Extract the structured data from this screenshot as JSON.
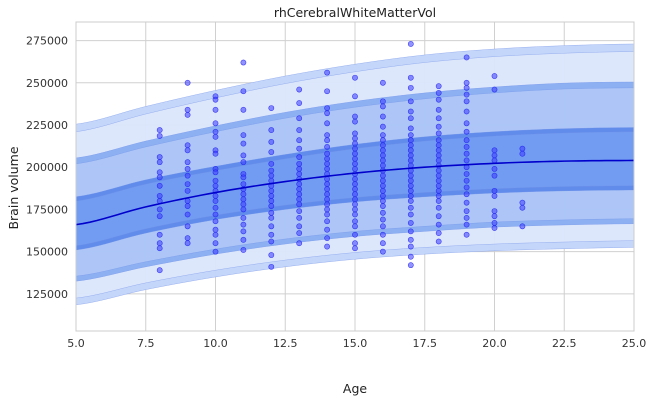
{
  "chart_data": {
    "type": "scatter",
    "title": "rhCerebralWhiteMatterVol",
    "xlabel": "Age",
    "ylabel": "Brain volume",
    "xlim": [
      5.0,
      25.0
    ],
    "ylim": [
      103000,
      286000
    ],
    "xticks": [
      5.0,
      7.5,
      10.0,
      12.5,
      15.0,
      17.5,
      20.0,
      22.5,
      25.0
    ],
    "xtick_labels": [
      "5.0",
      "7.5",
      "10.0",
      "12.5",
      "15.0",
      "17.5",
      "20.0",
      "22.5",
      "25.0"
    ],
    "yticks": [
      125000,
      150000,
      175000,
      200000,
      225000,
      250000,
      275000
    ],
    "ytick_labels": [
      "125000",
      "150000",
      "175000",
      "200000",
      "225000",
      "250000",
      "275000"
    ],
    "grid": true,
    "colors": {
      "points": "#3b3bff",
      "median": "#0000cc",
      "band_inner": "#6f9af0",
      "band_middle": "#aac4f7",
      "band_outer": "#dbe6fc",
      "grid": "#d0d0d0",
      "axes_edge": "#cccccc"
    },
    "median_curve": {
      "x": [
        5.0,
        7.5,
        10.0,
        12.5,
        15.0,
        17.5,
        20.0,
        22.5,
        25.0
      ],
      "y": [
        166000,
        176500,
        185000,
        191500,
        196500,
        200000,
        202300,
        203600,
        204000
      ]
    },
    "centile_bands": [
      {
        "x": [
          5.0,
          7.5,
          10.0,
          12.5,
          15.0,
          17.5,
          20.0,
          22.5,
          25.0
        ],
        "lower_min": [
          151000,
          161000,
          169000,
          175000,
          179500,
          182500,
          184700,
          186000,
          186500
        ],
        "lower_max": [
          153500,
          163500,
          171500,
          177500,
          182000,
          185000,
          187200,
          188500,
          189000
        ],
        "upper_min": [
          180000,
          190000,
          198000,
          205000,
          211000,
          215500,
          218500,
          220300,
          221000
        ],
        "upper_max": [
          182500,
          192500,
          200500,
          207500,
          213500,
          218000,
          221000,
          222800,
          223500
        ]
      },
      {
        "x": [
          5.0,
          7.5,
          10.0,
          12.5,
          15.0,
          17.5,
          20.0,
          22.5,
          25.0
        ],
        "lower_min": [
          132500,
          141000,
          148500,
          154500,
          159000,
          162000,
          164500,
          165800,
          166500
        ],
        "lower_max": [
          135500,
          144000,
          151500,
          157500,
          162000,
          165000,
          167500,
          168800,
          169500
        ],
        "upper_min": [
          202000,
          212000,
          221000,
          229000,
          235500,
          240500,
          244000,
          246300,
          247000
        ],
        "upper_max": [
          205500,
          215500,
          224500,
          232500,
          239000,
          244000,
          247500,
          249800,
          250500
        ]
      },
      {
        "x": [
          5.0,
          7.5,
          10.0,
          12.5,
          15.0,
          17.5,
          20.0,
          22.5,
          25.0
        ],
        "lower_min": [
          118500,
          127500,
          135000,
          141000,
          145500,
          148500,
          150500,
          151700,
          152500
        ],
        "lower_max": [
          122500,
          131500,
          139000,
          145000,
          149500,
          152500,
          154500,
          155700,
          156500
        ],
        "upper_min": [
          221000,
          231500,
          241000,
          249500,
          256500,
          262000,
          265500,
          267500,
          268500
        ],
        "upper_max": [
          225500,
          236000,
          245500,
          254000,
          261000,
          266500,
          270000,
          272000,
          273000
        ]
      }
    ],
    "points": [
      [
        8,
        222000
      ],
      [
        8,
        218500
      ],
      [
        8,
        206000
      ],
      [
        8,
        203000
      ],
      [
        8,
        197000
      ],
      [
        8,
        194000
      ],
      [
        8,
        189000
      ],
      [
        8,
        183000
      ],
      [
        8,
        180000
      ],
      [
        8,
        175000
      ],
      [
        8,
        171000
      ],
      [
        8,
        160000
      ],
      [
        8,
        155000
      ],
      [
        8,
        152000
      ],
      [
        8,
        139000
      ],
      [
        9,
        250000
      ],
      [
        9,
        234000
      ],
      [
        9,
        231000
      ],
      [
        9,
        213000
      ],
      [
        9,
        210000
      ],
      [
        9,
        203000
      ],
      [
        9,
        199000
      ],
      [
        9,
        195000
      ],
      [
        9,
        190000
      ],
      [
        9,
        186000
      ],
      [
        9,
        180000
      ],
      [
        9,
        177000
      ],
      [
        9,
        172000
      ],
      [
        9,
        165000
      ],
      [
        9,
        158000
      ],
      [
        9,
        155000
      ],
      [
        10,
        242000
      ],
      [
        10,
        240000
      ],
      [
        10,
        234000
      ],
      [
        10,
        226000
      ],
      [
        10,
        221000
      ],
      [
        10,
        218000
      ],
      [
        10,
        210000
      ],
      [
        10,
        208000
      ],
      [
        10,
        199000
      ],
      [
        10,
        197000
      ],
      [
        10,
        192000
      ],
      [
        10,
        189000
      ],
      [
        10,
        186000
      ],
      [
        10,
        183000
      ],
      [
        10,
        180000
      ],
      [
        10,
        176000
      ],
      [
        10,
        172000
      ],
      [
        10,
        168000
      ],
      [
        10,
        163000
      ],
      [
        10,
        160000
      ],
      [
        10,
        155000
      ],
      [
        10,
        150000
      ],
      [
        11,
        262000
      ],
      [
        11,
        245000
      ],
      [
        11,
        234000
      ],
      [
        11,
        219000
      ],
      [
        11,
        214000
      ],
      [
        11,
        207000
      ],
      [
        11,
        203000
      ],
      [
        11,
        196000
      ],
      [
        11,
        194000
      ],
      [
        11,
        190000
      ],
      [
        11,
        187000
      ],
      [
        11,
        184000
      ],
      [
        11,
        181000
      ],
      [
        11,
        178000
      ],
      [
        11,
        175000
      ],
      [
        11,
        170000
      ],
      [
        11,
        166000
      ],
      [
        11,
        162000
      ],
      [
        11,
        157000
      ],
      [
        11,
        151000
      ],
      [
        12,
        235000
      ],
      [
        12,
        222000
      ],
      [
        12,
        215000
      ],
      [
        12,
        209000
      ],
      [
        12,
        202000
      ],
      [
        12,
        198000
      ],
      [
        12,
        195000
      ],
      [
        12,
        192000
      ],
      [
        12,
        189000
      ],
      [
        12,
        186000
      ],
      [
        12,
        183000
      ],
      [
        12,
        180000
      ],
      [
        12,
        177000
      ],
      [
        12,
        173000
      ],
      [
        12,
        170000
      ],
      [
        12,
        165000
      ],
      [
        12,
        160000
      ],
      [
        12,
        156000
      ],
      [
        12,
        148000
      ],
      [
        12,
        141000
      ],
      [
        13,
        246000
      ],
      [
        13,
        238000
      ],
      [
        13,
        229000
      ],
      [
        13,
        222000
      ],
      [
        13,
        216000
      ],
      [
        13,
        211000
      ],
      [
        13,
        206000
      ],
      [
        13,
        202000
      ],
      [
        13,
        199000
      ],
      [
        13,
        196000
      ],
      [
        13,
        193000
      ],
      [
        13,
        190000
      ],
      [
        13,
        187000
      ],
      [
        13,
        184000
      ],
      [
        13,
        181000
      ],
      [
        13,
        178000
      ],
      [
        13,
        174000
      ],
      [
        13,
        170000
      ],
      [
        13,
        165000
      ],
      [
        13,
        161000
      ],
      [
        13,
        155000
      ],
      [
        14,
        256000
      ],
      [
        14,
        245000
      ],
      [
        14,
        235000
      ],
      [
        14,
        232000
      ],
      [
        14,
        226000
      ],
      [
        14,
        219000
      ],
      [
        14,
        216000
      ],
      [
        14,
        212000
      ],
      [
        14,
        208000
      ],
      [
        14,
        205000
      ],
      [
        14,
        202000
      ],
      [
        14,
        199000
      ],
      [
        14,
        196000
      ],
      [
        14,
        193000
      ],
      [
        14,
        190000
      ],
      [
        14,
        187000
      ],
      [
        14,
        184000
      ],
      [
        14,
        181000
      ],
      [
        14,
        178000
      ],
      [
        14,
        175000
      ],
      [
        14,
        172000
      ],
      [
        14,
        168000
      ],
      [
        14,
        163000
      ],
      [
        14,
        158000
      ],
      [
        14,
        153000
      ],
      [
        15,
        253000
      ],
      [
        15,
        242000
      ],
      [
        15,
        230000
      ],
      [
        15,
        227000
      ],
      [
        15,
        220000
      ],
      [
        15,
        217000
      ],
      [
        15,
        214000
      ],
      [
        15,
        211000
      ],
      [
        15,
        208000
      ],
      [
        15,
        205000
      ],
      [
        15,
        202000
      ],
      [
        15,
        199000
      ],
      [
        15,
        196000
      ],
      [
        15,
        193000
      ],
      [
        15,
        190000
      ],
      [
        15,
        187000
      ],
      [
        15,
        184000
      ],
      [
        15,
        181000
      ],
      [
        15,
        178000
      ],
      [
        15,
        175000
      ],
      [
        15,
        172000
      ],
      [
        15,
        168000
      ],
      [
        15,
        165000
      ],
      [
        15,
        160000
      ],
      [
        15,
        155000
      ],
      [
        15,
        152000
      ],
      [
        16,
        250000
      ],
      [
        16,
        239000
      ],
      [
        16,
        236000
      ],
      [
        16,
        230000
      ],
      [
        16,
        224000
      ],
      [
        16,
        219000
      ],
      [
        16,
        216000
      ],
      [
        16,
        213000
      ],
      [
        16,
        210000
      ],
      [
        16,
        207000
      ],
      [
        16,
        204000
      ],
      [
        16,
        201000
      ],
      [
        16,
        198000
      ],
      [
        16,
        195000
      ],
      [
        16,
        192000
      ],
      [
        16,
        189000
      ],
      [
        16,
        186000
      ],
      [
        16,
        183000
      ],
      [
        16,
        180000
      ],
      [
        16,
        177000
      ],
      [
        16,
        173000
      ],
      [
        16,
        169000
      ],
      [
        16,
        165000
      ],
      [
        16,
        160000
      ],
      [
        16,
        155000
      ],
      [
        16,
        150000
      ],
      [
        17,
        273000
      ],
      [
        17,
        253000
      ],
      [
        17,
        247000
      ],
      [
        17,
        239000
      ],
      [
        17,
        233000
      ],
      [
        17,
        229000
      ],
      [
        17,
        223000
      ],
      [
        17,
        219000
      ],
      [
        17,
        216000
      ],
      [
        17,
        213000
      ],
      [
        17,
        210000
      ],
      [
        17,
        207000
      ],
      [
        17,
        204000
      ],
      [
        17,
        201000
      ],
      [
        17,
        198000
      ],
      [
        17,
        195000
      ],
      [
        17,
        192000
      ],
      [
        17,
        189000
      ],
      [
        17,
        186000
      ],
      [
        17,
        183000
      ],
      [
        17,
        180000
      ],
      [
        17,
        176000
      ],
      [
        17,
        172000
      ],
      [
        17,
        167000
      ],
      [
        17,
        162000
      ],
      [
        17,
        157000
      ],
      [
        17,
        153000
      ],
      [
        17,
        147000
      ],
      [
        17,
        142000
      ],
      [
        18,
        248000
      ],
      [
        18,
        244000
      ],
      [
        18,
        240000
      ],
      [
        18,
        234000
      ],
      [
        18,
        229000
      ],
      [
        18,
        224000
      ],
      [
        18,
        220000
      ],
      [
        18,
        216000
      ],
      [
        18,
        213000
      ],
      [
        18,
        210000
      ],
      [
        18,
        207000
      ],
      [
        18,
        204000
      ],
      [
        18,
        201000
      ],
      [
        18,
        198000
      ],
      [
        18,
        195000
      ],
      [
        18,
        192000
      ],
      [
        18,
        189000
      ],
      [
        18,
        186000
      ],
      [
        18,
        183000
      ],
      [
        18,
        180000
      ],
      [
        18,
        176000
      ],
      [
        18,
        171000
      ],
      [
        18,
        166000
      ],
      [
        18,
        161000
      ],
      [
        18,
        156000
      ],
      [
        19,
        265000
      ],
      [
        19,
        250000
      ],
      [
        19,
        247000
      ],
      [
        19,
        243000
      ],
      [
        19,
        239000
      ],
      [
        19,
        233000
      ],
      [
        19,
        226000
      ],
      [
        19,
        221000
      ],
      [
        19,
        216000
      ],
      [
        19,
        212000
      ],
      [
        19,
        208000
      ],
      [
        19,
        204000
      ],
      [
        19,
        200000
      ],
      [
        19,
        196000
      ],
      [
        19,
        192000
      ],
      [
        19,
        188000
      ],
      [
        19,
        184000
      ],
      [
        19,
        179000
      ],
      [
        19,
        174000
      ],
      [
        19,
        170000
      ],
      [
        19,
        166000
      ],
      [
        19,
        160000
      ],
      [
        20,
        254000
      ],
      [
        20,
        246000
      ],
      [
        20,
        210000
      ],
      [
        20,
        207000
      ],
      [
        20,
        204000
      ],
      [
        20,
        199000
      ],
      [
        20,
        195000
      ],
      [
        20,
        186000
      ],
      [
        20,
        183000
      ],
      [
        20,
        174000
      ],
      [
        20,
        171000
      ],
      [
        20,
        167000
      ],
      [
        20,
        164000
      ],
      [
        21,
        211000
      ],
      [
        21,
        208000
      ],
      [
        21,
        179000
      ],
      [
        21,
        176000
      ],
      [
        21,
        165000
      ]
    ]
  }
}
